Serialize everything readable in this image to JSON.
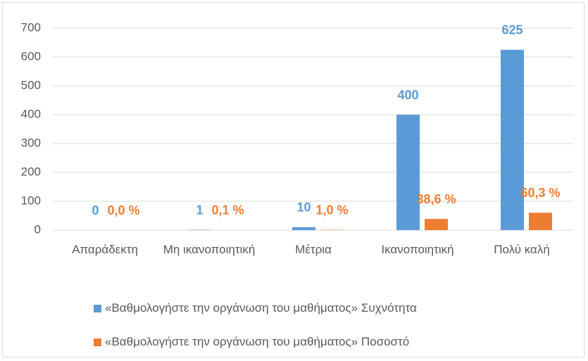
{
  "chart_data": {
    "type": "bar",
    "categories": [
      "Απαράδεκτη",
      "Μη ικανοποιητική",
      "Μέτρια",
      "Ικανοποιητική",
      "Πολύ καλή"
    ],
    "series": [
      {
        "name": "«Βαθμολογήστε την οργάνωση του μαθήματος» Συχνότητα",
        "color": "#5b9bd5",
        "values": [
          0,
          1,
          10,
          400,
          625
        ]
      },
      {
        "name": "«Βαθμολογήστε την οργάνωση του μαθήματος» Ποσοστό",
        "color": "#ed7d31",
        "values": [
          0.0,
          0.1,
          1.0,
          38.6,
          60.3
        ],
        "value_labels": [
          "0,0 %",
          "0,1 %",
          "1,0 %",
          "38,6 %",
          "60,3 %"
        ]
      }
    ],
    "ylim": [
      0,
      700
    ],
    "yticks": [
      0,
      100,
      200,
      300,
      400,
      500,
      600,
      700
    ],
    "grid": true,
    "legend": "bottom"
  }
}
